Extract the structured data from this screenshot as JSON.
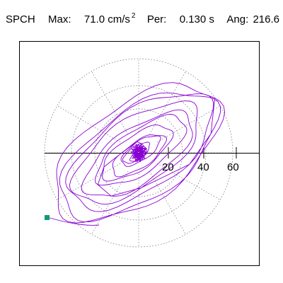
{
  "header": {
    "station": "SPCH",
    "max_label": "Max:",
    "max_value": "71.0 cm/s",
    "max_exp": "2",
    "period_label": "Per:",
    "period_value": "0.130 s",
    "angle_label": "Ang:",
    "angle_value": "216.6"
  },
  "chart_data": {
    "type": "line",
    "title": "",
    "xlabel": "",
    "ylabel": "",
    "x_ticks": [
      "20",
      "40",
      "60"
    ],
    "grid": "polar dotted rings",
    "series": [
      {
        "name": "",
        "color": "#8a00d4"
      }
    ],
    "end_marker": {
      "color": "#119977"
    }
  }
}
